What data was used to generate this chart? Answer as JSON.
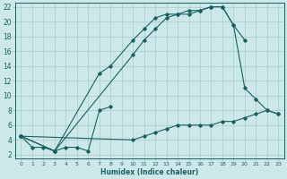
{
  "xlabel": "Humidex (Indice chaleur)",
  "bg_color": "#cde8e8",
  "grid_color": "#aacccc",
  "line_color": "#1a6060",
  "xlim": [
    -0.5,
    23.5
  ],
  "ylim": [
    1.5,
    22.5
  ],
  "xticks": [
    0,
    1,
    2,
    3,
    4,
    5,
    6,
    7,
    8,
    9,
    10,
    11,
    12,
    13,
    14,
    15,
    16,
    17,
    18,
    19,
    20,
    21,
    22,
    23
  ],
  "yticks": [
    2,
    4,
    6,
    8,
    10,
    12,
    14,
    16,
    18,
    20,
    22
  ],
  "lines": [
    {
      "x": [
        0,
        1,
        2,
        3,
        4,
        5,
        6,
        7,
        8
      ],
      "y": [
        4.5,
        3.0,
        3.0,
        2.5,
        3.0,
        3.0,
        2.5,
        8.0,
        8.5
      ]
    },
    {
      "x": [
        0,
        3,
        7,
        8,
        10,
        11,
        12,
        13,
        14,
        15,
        16,
        17,
        18,
        19,
        20,
        21,
        22,
        23
      ],
      "y": [
        4.5,
        2.5,
        13.0,
        14.0,
        17.5,
        19.0,
        20.5,
        21.0,
        21.0,
        21.5,
        21.5,
        22.0,
        22.0,
        19.5,
        11.0,
        9.5,
        8.0,
        7.5
      ]
    },
    {
      "x": [
        0,
        3,
        10,
        11,
        12,
        13,
        14,
        15,
        16,
        17,
        18,
        19,
        20
      ],
      "y": [
        4.5,
        2.5,
        15.5,
        17.5,
        19.0,
        20.5,
        21.0,
        21.0,
        21.5,
        22.0,
        22.0,
        19.5,
        17.5
      ]
    },
    {
      "x": [
        0,
        10,
        11,
        12,
        13,
        14,
        15,
        16,
        17,
        18,
        19,
        20,
        21,
        22,
        23
      ],
      "y": [
        4.5,
        4.0,
        4.5,
        5.0,
        5.5,
        6.0,
        6.0,
        6.0,
        6.0,
        6.5,
        6.5,
        7.0,
        7.5,
        8.0,
        7.5
      ]
    }
  ]
}
